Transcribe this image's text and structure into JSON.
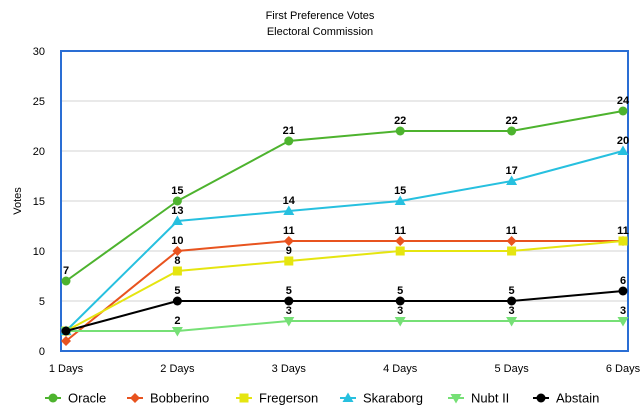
{
  "chart_data": {
    "type": "line",
    "title": "First Preference Votes",
    "subtitle": "Electoral Commission",
    "xlabel": "",
    "ylabel": "Votes",
    "categories": [
      "1 Days",
      "2 Days",
      "3 Days",
      "4 Days",
      "5 Days",
      "6 Days"
    ],
    "ylim": [
      0,
      30
    ],
    "yticks": [
      0,
      5,
      10,
      15,
      20,
      25,
      30
    ],
    "grid": true,
    "legend": "bottom",
    "series": [
      {
        "name": "Oracle",
        "color": "#4db32e",
        "marker": "circle",
        "values": [
          7,
          15,
          21,
          22,
          22,
          24
        ],
        "labels": [
          "7",
          "15",
          "21",
          "22",
          "22",
          "24"
        ]
      },
      {
        "name": "Bobberino",
        "color": "#e8531f",
        "marker": "diamond",
        "values": [
          1,
          10,
          11,
          11,
          11,
          11
        ],
        "labels": [
          "",
          "10",
          "11",
          "11",
          "11",
          "11"
        ]
      },
      {
        "name": "Fregerson",
        "color": "#e5e510",
        "marker": "square",
        "values": [
          2,
          8,
          9,
          10,
          10,
          11
        ],
        "labels": [
          "",
          "8",
          "9",
          "",
          "",
          ""
        ]
      },
      {
        "name": "Skaraborg",
        "color": "#27c0df",
        "marker": "triangle-up",
        "values": [
          2,
          13,
          14,
          15,
          17,
          20
        ],
        "labels": [
          "",
          "13",
          "14",
          "15",
          "17",
          "20"
        ]
      },
      {
        "name": "Nubt II",
        "color": "#76e076",
        "marker": "triangle-down",
        "values": [
          2,
          2,
          3,
          3,
          3,
          3
        ],
        "labels": [
          "",
          "2",
          "3",
          "3",
          "3",
          "3"
        ]
      },
      {
        "name": "Abstain",
        "color": "#000000",
        "marker": "circle",
        "values": [
          2,
          5,
          5,
          5,
          5,
          6
        ],
        "labels": [
          "",
          "5",
          "5",
          "5",
          "5",
          "6"
        ]
      }
    ]
  }
}
